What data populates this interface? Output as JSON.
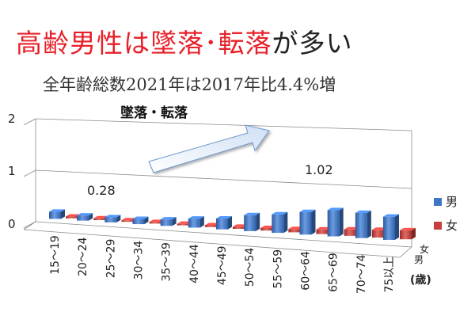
{
  "header": {
    "title_accent": "高齢男性は墜落･転落",
    "title_rest": "が多い",
    "subtitle": "全年齢総数2021年は2017年比4.4%増"
  },
  "chart_data": {
    "type": "bar",
    "categories": [
      "15～19",
      "20～24",
      "25～29",
      "30～34",
      "35～39",
      "40～44",
      "45～49",
      "50～54",
      "55～59",
      "60～64",
      "65～69",
      "70～74",
      "75以上"
    ],
    "series": [
      {
        "name": "男",
        "color": "#3f76c4",
        "values": [
          0.28,
          0.2,
          0.2,
          0.2,
          0.25,
          0.35,
          0.42,
          0.62,
          0.72,
          0.88,
          1.02,
          0.98,
          0.9
        ]
      },
      {
        "name": "女",
        "color": "#c6403b",
        "values": [
          0.07,
          0.07,
          0.06,
          0.06,
          0.06,
          0.07,
          0.08,
          0.1,
          0.13,
          0.18,
          0.25,
          0.3,
          0.35
        ]
      }
    ],
    "yticks": [
      "0",
      "1",
      "2"
    ],
    "ylim": [
      0,
      2
    ],
    "data_labels": [
      "0.28",
      "1.02"
    ],
    "annotation": "墜落・転落",
    "depth_labels": [
      "女",
      "男"
    ],
    "xlabel_unit": "(歳)",
    "legend_position": "right"
  }
}
